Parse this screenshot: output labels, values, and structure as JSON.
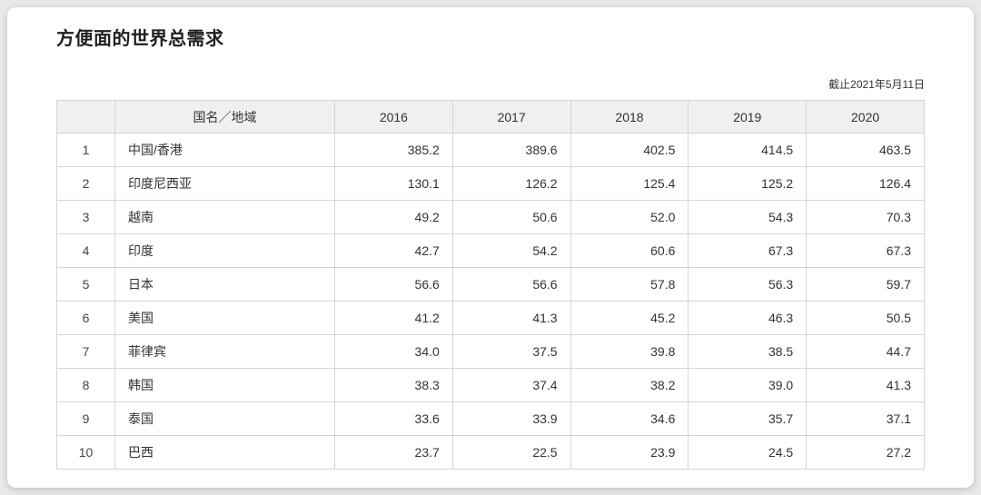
{
  "page": {
    "title": "方便面的世界总需求",
    "date_note": "截止2021年5月11日"
  },
  "colors": {
    "header_bg": "#f0f0f0",
    "border": "#d5d5d5",
    "card_bg": "#ffffff",
    "page_bg": "#e9e9e9"
  },
  "chart_data": {
    "type": "table",
    "title": "方便面的世界总需求",
    "columns": [
      "",
      "国名／地域",
      "2016",
      "2017",
      "2018",
      "2019",
      "2020"
    ],
    "rows": [
      {
        "rank": 1,
        "region": "中国/香港",
        "values": [
          385.2,
          389.6,
          402.5,
          414.5,
          463.5
        ]
      },
      {
        "rank": 2,
        "region": "印度尼西亚",
        "values": [
          130.1,
          126.2,
          125.4,
          125.2,
          126.4
        ]
      },
      {
        "rank": 3,
        "region": "越南",
        "values": [
          49.2,
          50.6,
          52.0,
          54.3,
          70.3
        ]
      },
      {
        "rank": 4,
        "region": "印度",
        "values": [
          42.7,
          54.2,
          60.6,
          67.3,
          67.3
        ]
      },
      {
        "rank": 5,
        "region": "日本",
        "values": [
          56.6,
          56.6,
          57.8,
          56.3,
          59.7
        ]
      },
      {
        "rank": 6,
        "region": "美国",
        "values": [
          41.2,
          41.3,
          45.2,
          46.3,
          50.5
        ]
      },
      {
        "rank": 7,
        "region": "菲律宾",
        "values": [
          34.0,
          37.5,
          39.8,
          38.5,
          44.7
        ]
      },
      {
        "rank": 8,
        "region": "韩国",
        "values": [
          38.3,
          37.4,
          38.2,
          39.0,
          41.3
        ]
      },
      {
        "rank": 9,
        "region": "泰国",
        "values": [
          33.6,
          33.9,
          34.6,
          35.7,
          37.1
        ]
      },
      {
        "rank": 10,
        "region": "巴西",
        "values": [
          23.7,
          22.5,
          23.9,
          24.5,
          27.2
        ]
      }
    ]
  }
}
